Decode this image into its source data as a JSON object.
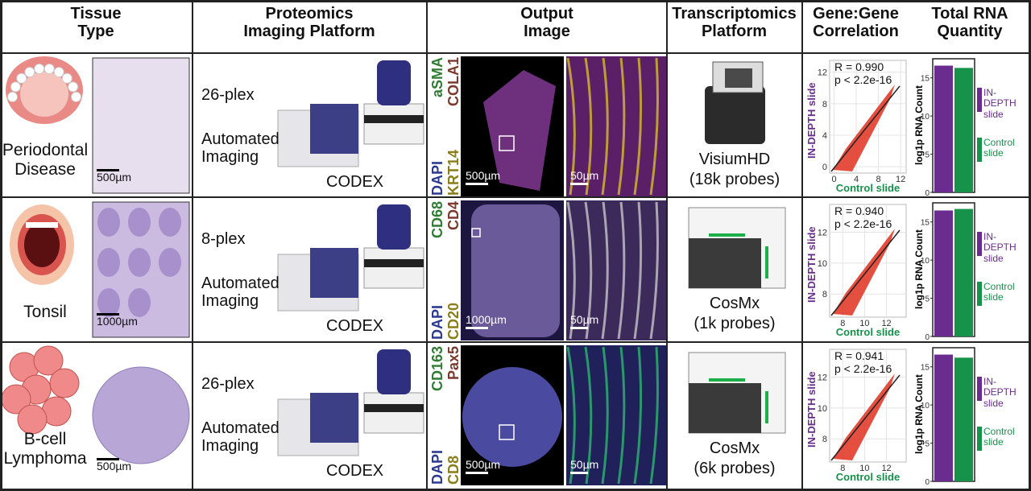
{
  "header": [
    [
      "Tissue",
      "Type"
    ],
    [
      "Proteomics",
      "Imaging Platform"
    ],
    [
      "Output",
      "Image"
    ],
    [
      "Transcriptomics",
      "Platform"
    ],
    [
      "Gene:Gene",
      "Correlation"
    ],
    [
      "Total RNA",
      "Quantity"
    ]
  ],
  "rows": [
    {
      "tissue": [
        "Periodontal",
        "Disease"
      ],
      "tissue_scale": "500µm",
      "plex": "26-plex",
      "imaging": [
        "Automated",
        "Imaging"
      ],
      "proteomics_platform": "CODEX",
      "markers": [
        [
          "DAPI",
          "aSMA"
        ],
        [
          "KRT14",
          "COLA1"
        ]
      ],
      "image_scales": [
        "500µm",
        "50µm"
      ],
      "transcriptomics": "VisiumHD",
      "probes": "(18k probes)",
      "correlation": {
        "r": "R = 0.990",
        "p": "p < 2.2e-16",
        "x_label": "Control slide",
        "y_label": "IN-DEPTH slide",
        "xlim": [
          -0.8,
          13
        ],
        "ylim": [
          -0.8,
          13.5
        ],
        "xticks": [
          0,
          4,
          8,
          12
        ],
        "yticks": [
          0,
          4,
          8,
          12
        ]
      },
      "rna": {
        "y_label": "log1p RNA Count",
        "ylim": [
          0,
          17.5
        ],
        "yticks": [
          0,
          5,
          10,
          15
        ],
        "series": [
          {
            "name": "IN-DEPTH slide",
            "color": "#6a2c8e",
            "value": 16.6
          },
          {
            "name": "Control slide",
            "color": "#16924a",
            "value": 16.3
          }
        ]
      }
    },
    {
      "tissue": [
        "Tonsil"
      ],
      "tissue_scale": "1000µm",
      "plex": "8-plex",
      "imaging": [
        "Automated",
        "Imaging"
      ],
      "proteomics_platform": "CODEX",
      "markers": [
        [
          "DAPI",
          "CD68"
        ],
        [
          "CD20",
          "CD4"
        ]
      ],
      "image_scales": [
        "1000µm",
        "50µm"
      ],
      "transcriptomics": "CosMx",
      "probes": "(1k probes)",
      "correlation": {
        "r": "R = 0.940",
        "p": "p < 2.2e-16",
        "x_label": "Control slide",
        "y_label": "IN-DEPTH slide",
        "xlim": [
          6.8,
          13.8
        ],
        "ylim": [
          6.5,
          13.8
        ],
        "xticks": [
          8,
          10,
          12
        ],
        "yticks": [
          8,
          10,
          12
        ]
      },
      "rna": {
        "y_label": "log1p RNA Count",
        "ylim": [
          0,
          17.5
        ],
        "yticks": [
          0,
          5,
          10,
          15
        ],
        "series": [
          {
            "name": "IN-DEPTH slide",
            "color": "#6a2c8e",
            "value": 16.5
          },
          {
            "name": "Control slide",
            "color": "#16924a",
            "value": 16.7
          }
        ]
      }
    },
    {
      "tissue": [
        "B-cell",
        "Lymphoma"
      ],
      "tissue_scale": "500µm",
      "plex": "26-plex",
      "imaging": [
        "Automated",
        "Imaging"
      ],
      "proteomics_platform": "CODEX",
      "markers": [
        [
          "DAPI",
          "CD163"
        ],
        [
          "CD8",
          "Pax5"
        ]
      ],
      "image_scales": [
        "500µm",
        "50µm"
      ],
      "transcriptomics": "CosMx",
      "probes": "(6k probes)",
      "correlation": {
        "r": "R = 0.941",
        "p": "p < 2.2e-16",
        "x_label": "Control slide",
        "y_label": "IN-DEPTH slide",
        "xlim": [
          6.8,
          13.8
        ],
        "ylim": [
          6.5,
          13.8
        ],
        "xticks": [
          8,
          10,
          12
        ],
        "yticks": [
          8,
          10,
          12
        ]
      },
      "rna": {
        "y_label": "log1p RNA Count",
        "ylim": [
          0,
          17.5
        ],
        "yticks": [
          0,
          5,
          10,
          15
        ],
        "series": [
          {
            "name": "IN-DEPTH slide",
            "color": "#6a2c8e",
            "value": 16.6
          },
          {
            "name": "Control slide",
            "color": "#16924a",
            "value": 16.2
          }
        ]
      }
    }
  ]
}
